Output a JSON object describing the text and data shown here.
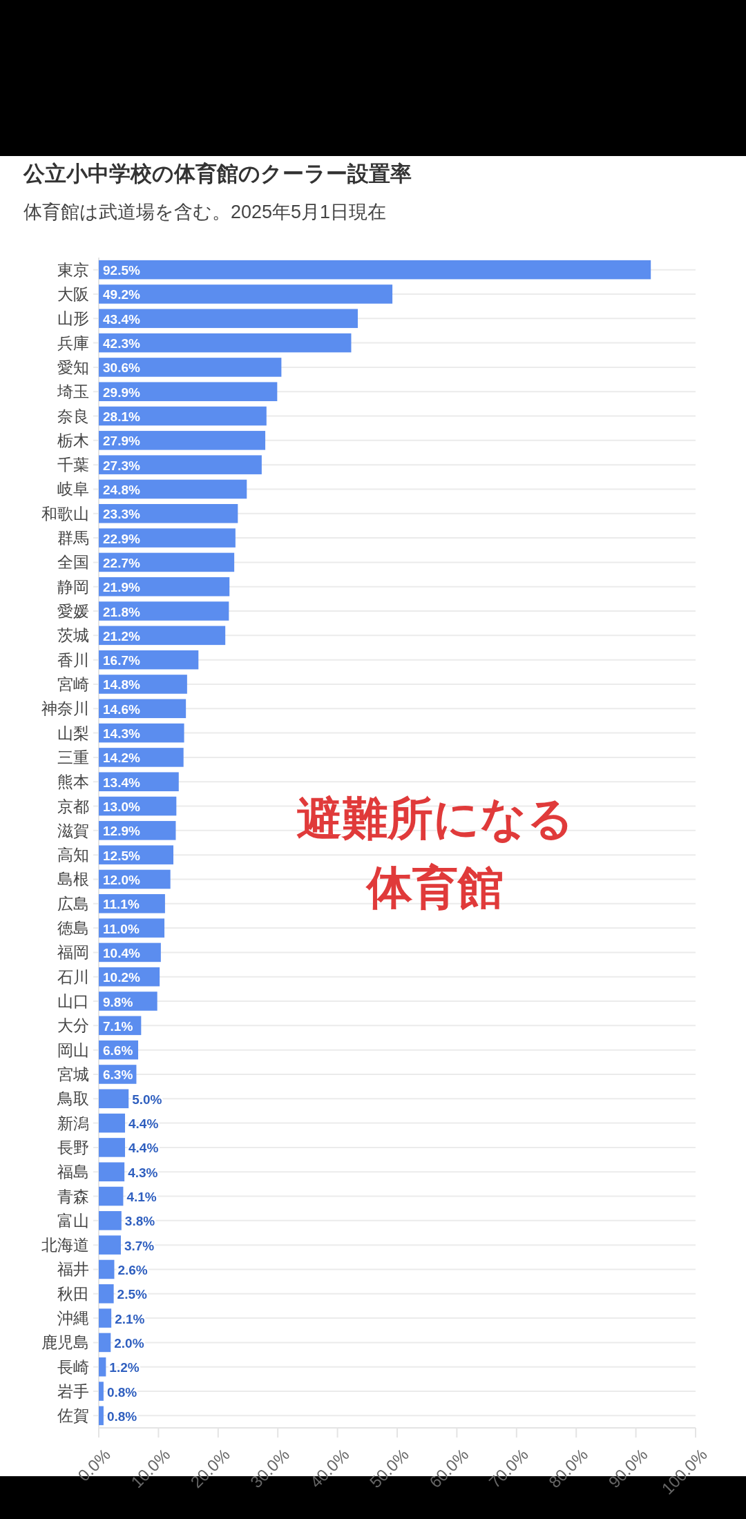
{
  "chart_data": {
    "type": "bar",
    "orientation": "horizontal",
    "title": "公立小中学校の体育館のクーラー設置率",
    "subtitle": "体育館は武道場を含む。2025年5月1日現在",
    "categories": [
      "東京",
      "大阪",
      "山形",
      "兵庫",
      "愛知",
      "埼玉",
      "奈良",
      "栃木",
      "千葉",
      "岐阜",
      "和歌山",
      "群馬",
      "全国",
      "静岡",
      "愛媛",
      "茨城",
      "香川",
      "宮崎",
      "神奈川",
      "山梨",
      "三重",
      "熊本",
      "京都",
      "滋賀",
      "高知",
      "島根",
      "広島",
      "徳島",
      "福岡",
      "石川",
      "山口",
      "大分",
      "岡山",
      "宮城",
      "鳥取",
      "新潟",
      "長野",
      "福島",
      "青森",
      "富山",
      "北海道",
      "福井",
      "秋田",
      "沖縄",
      "鹿児島",
      "長崎",
      "岩手",
      "佐賀"
    ],
    "values": [
      92.5,
      49.2,
      43.4,
      42.3,
      30.6,
      29.9,
      28.1,
      27.9,
      27.3,
      24.8,
      23.3,
      22.9,
      22.7,
      21.9,
      21.8,
      21.2,
      16.7,
      14.8,
      14.6,
      14.3,
      14.2,
      13.4,
      13.0,
      12.9,
      12.5,
      12.0,
      11.1,
      11.0,
      10.4,
      10.2,
      9.8,
      7.1,
      6.6,
      6.3,
      5.0,
      4.4,
      4.4,
      4.3,
      4.1,
      3.8,
      3.7,
      2.6,
      2.5,
      2.1,
      2.0,
      1.2,
      0.8,
      0.8
    ],
    "value_labels": [
      "92.5%",
      "49.2%",
      "43.4%",
      "42.3%",
      "30.6%",
      "29.9%",
      "28.1%",
      "27.9%",
      "27.3%",
      "24.8%",
      "23.3%",
      "22.9%",
      "22.7%",
      "21.9%",
      "21.8%",
      "21.2%",
      "16.7%",
      "14.8%",
      "14.6%",
      "14.3%",
      "14.2%",
      "13.4%",
      "13.0%",
      "12.9%",
      "12.5%",
      "12.0%",
      "11.1%",
      "11.0%",
      "10.4%",
      "10.2%",
      "9.8%",
      "7.1%",
      "6.6%",
      "6.3%",
      "5.0%",
      "4.4%",
      "4.4%",
      "4.3%",
      "4.1%",
      "3.8%",
      "3.7%",
      "2.6%",
      "2.5%",
      "2.1%",
      "2.0%",
      "1.2%",
      "0.8%",
      "0.8%"
    ],
    "color": "#5b8def",
    "xlim": [
      0,
      100
    ],
    "xticks": [
      {
        "value": 0,
        "label": "0.0%"
      },
      {
        "value": 10,
        "label": "10.0%"
      },
      {
        "value": 20,
        "label": "20.0%"
      },
      {
        "value": 30,
        "label": "30.0%"
      },
      {
        "value": 40,
        "label": "40.0%"
      },
      {
        "value": 50,
        "label": "50.0%"
      },
      {
        "value": 60,
        "label": "60.0%"
      },
      {
        "value": 70,
        "label": "70.0%"
      },
      {
        "value": 80,
        "label": "80.0%"
      },
      {
        "value": 90,
        "label": "90.0%"
      },
      {
        "value": 100,
        "label": "100.0%"
      }
    ],
    "grid": "y",
    "annotations": [
      "避難所になる",
      "体育館"
    ]
  }
}
